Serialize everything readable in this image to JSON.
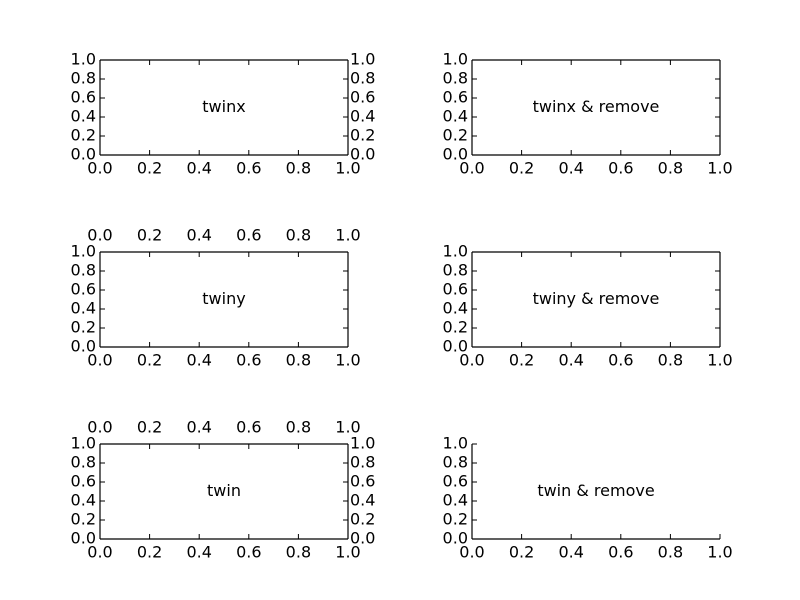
{
  "chart_data": [
    {
      "type": "scatter",
      "label": "twinx",
      "xlim": [
        0.0,
        1.0
      ],
      "ylim": [
        0.0,
        1.0
      ],
      "xticks": [
        "0.0",
        "0.2",
        "0.4",
        "0.6",
        "0.8",
        "1.0"
      ],
      "yticks": [
        "0.0",
        "0.2",
        "0.4",
        "0.6",
        "0.8",
        "1.0"
      ],
      "axes": {
        "bottom": true,
        "top": false,
        "left": true,
        "right": true
      },
      "frame": {
        "top": true,
        "right": true
      },
      "grid": false,
      "series": []
    },
    {
      "type": "scatter",
      "label": "twinx & remove",
      "xlim": [
        0.0,
        1.0
      ],
      "ylim": [
        0.0,
        1.0
      ],
      "xticks": [
        "0.0",
        "0.2",
        "0.4",
        "0.6",
        "0.8",
        "1.0"
      ],
      "yticks": [
        "0.0",
        "0.2",
        "0.4",
        "0.6",
        "0.8",
        "1.0"
      ],
      "axes": {
        "bottom": true,
        "top": false,
        "left": true,
        "right": false
      },
      "frame": {
        "top": true,
        "right": true
      },
      "grid": false,
      "series": []
    },
    {
      "type": "scatter",
      "label": "twiny",
      "xlim": [
        0.0,
        1.0
      ],
      "ylim": [
        0.0,
        1.0
      ],
      "xticks": [
        "0.0",
        "0.2",
        "0.4",
        "0.6",
        "0.8",
        "1.0"
      ],
      "yticks": [
        "0.0",
        "0.2",
        "0.4",
        "0.6",
        "0.8",
        "1.0"
      ],
      "axes": {
        "bottom": true,
        "top": true,
        "left": true,
        "right": false
      },
      "frame": {
        "top": true,
        "right": true
      },
      "grid": false,
      "series": []
    },
    {
      "type": "scatter",
      "label": "twiny & remove",
      "xlim": [
        0.0,
        1.0
      ],
      "ylim": [
        0.0,
        1.0
      ],
      "xticks": [
        "0.0",
        "0.2",
        "0.4",
        "0.6",
        "0.8",
        "1.0"
      ],
      "yticks": [
        "0.0",
        "0.2",
        "0.4",
        "0.6",
        "0.8",
        "1.0"
      ],
      "axes": {
        "bottom": true,
        "top": false,
        "left": true,
        "right": false
      },
      "frame": {
        "top": true,
        "right": true
      },
      "grid": false,
      "series": []
    },
    {
      "type": "scatter",
      "label": "twin",
      "xlim": [
        0.0,
        1.0
      ],
      "ylim": [
        0.0,
        1.0
      ],
      "xticks": [
        "0.0",
        "0.2",
        "0.4",
        "0.6",
        "0.8",
        "1.0"
      ],
      "yticks": [
        "0.0",
        "0.2",
        "0.4",
        "0.6",
        "0.8",
        "1.0"
      ],
      "axes": {
        "bottom": true,
        "top": true,
        "left": true,
        "right": true
      },
      "frame": {
        "top": true,
        "right": true
      },
      "grid": false,
      "series": []
    },
    {
      "type": "scatter",
      "label": "twin & remove",
      "xlim": [
        0.0,
        1.0
      ],
      "ylim": [
        0.0,
        1.0
      ],
      "xticks": [
        "0.0",
        "0.2",
        "0.4",
        "0.6",
        "0.8",
        "1.0"
      ],
      "yticks": [
        "0.0",
        "0.2",
        "0.4",
        "0.6",
        "0.8",
        "1.0"
      ],
      "axes": {
        "bottom": true,
        "top": false,
        "left": true,
        "right": false
      },
      "frame": {
        "top": false,
        "right": false
      },
      "grid": false,
      "series": []
    }
  ]
}
